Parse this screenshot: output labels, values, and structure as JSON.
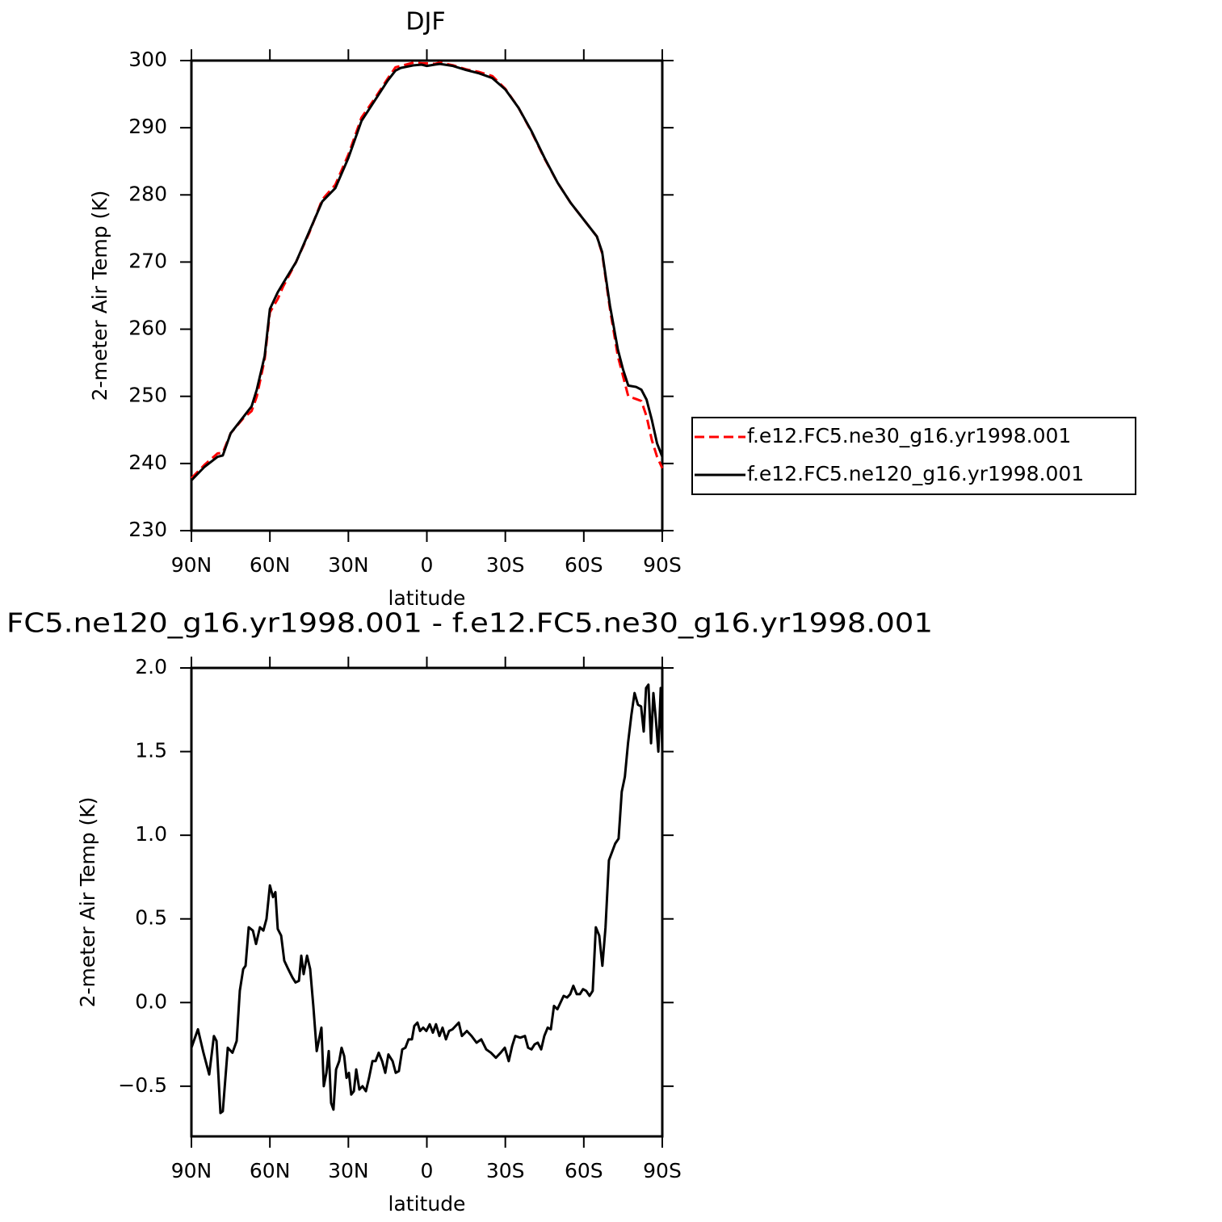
{
  "chart_data": [
    {
      "type": "line",
      "title": "DJF",
      "xlabel": "latitude",
      "ylabel": "2-meter Air Temp (K)",
      "x": [
        90,
        85,
        80,
        78,
        75,
        70,
        67,
        65,
        62,
        60,
        57,
        55,
        50,
        45,
        40,
        35,
        30,
        25,
        20,
        15,
        12,
        10,
        5,
        2,
        0,
        -3,
        -5,
        -10,
        -15,
        -20,
        -25,
        -30,
        -35,
        -40,
        -45,
        -50,
        -55,
        -60,
        -65,
        -67,
        -70,
        -73,
        -75,
        -77,
        -80,
        -82,
        -84,
        -86,
        -88,
        -90
      ],
      "series": [
        {
          "name": "f.e12.FC5.ne30_g16.yr1998.001",
          "color": "#ff0000",
          "dash": "dashed",
          "values": [
            237.8,
            239.8,
            241.5,
            241.6,
            244.5,
            246.8,
            247.8,
            250,
            255.5,
            262.5,
            264.5,
            266.3,
            270,
            274.3,
            279.3,
            281.5,
            286,
            291.5,
            294.3,
            297.3,
            299,
            299.2,
            299.7,
            299.6,
            299.6,
            299.5,
            299.7,
            299.3,
            298.7,
            298.3,
            297.7,
            295.8,
            293,
            289.4,
            285.4,
            281.8,
            278.8,
            276.3,
            273.8,
            271.3,
            263,
            256,
            253,
            250,
            249.6,
            249.3,
            247,
            243.5,
            241,
            239.3
          ]
        },
        {
          "name": "f.e12.FC5.ne120_g16.yr1998.001",
          "color": "#000000",
          "dash": "solid",
          "values": [
            237.5,
            239.5,
            241,
            241.2,
            244.5,
            247,
            248.5,
            251,
            256,
            263,
            265.5,
            266.8,
            270,
            274.5,
            279,
            281,
            285.5,
            291,
            294,
            297,
            298.5,
            298.9,
            299.3,
            299.4,
            299.2,
            299.4,
            299.5,
            299.2,
            298.6,
            298.1,
            297.4,
            295.7,
            293,
            289.5,
            285.5,
            281.8,
            278.8,
            276.3,
            273.8,
            271.5,
            263.5,
            257,
            254,
            251.6,
            251.4,
            251,
            249.5,
            246.5,
            243,
            241
          ]
        }
      ],
      "xlim": [
        90,
        -90
      ],
      "xticks": [
        {
          "value": 90,
          "label": "90N"
        },
        {
          "value": 60,
          "label": "60N"
        },
        {
          "value": 30,
          "label": "30N"
        },
        0,
        {
          "value": -30,
          "label": "30S"
        },
        {
          "value": -60,
          "label": "60S"
        },
        {
          "value": -90,
          "label": "90S"
        }
      ],
      "ylim": [
        230,
        300
      ],
      "yticks": [
        230,
        240,
        250,
        260,
        270,
        280,
        290,
        300
      ],
      "legend": "right"
    },
    {
      "type": "line",
      "title": "FC5.ne120_g16.yr1998.001 - f.e12.FC5.ne30_g16.yr1998.001",
      "xlabel": "latitude",
      "ylabel": "2-meter Air Temp (K)",
      "color": "#000000",
      "x": [
        90,
        87.5,
        85.4,
        83.2,
        81.4,
        80.4,
        78.9,
        78,
        76.1,
        74.3,
        72.7,
        71.5,
        70.2,
        69.3,
        68.1,
        66.5,
        65.3,
        63.8,
        62.5,
        61.3,
        60,
        58.8,
        57.9,
        57,
        55.7,
        54.5,
        53,
        51.4,
        50.2,
        48.9,
        48,
        47.1,
        45.8,
        44.6,
        43.4,
        42.1,
        41.2,
        40.3,
        39.4,
        38.4,
        37.5,
        36.6,
        35.7,
        34.7,
        33.5,
        32.6,
        31.6,
        30.7,
        29.8,
        28.9,
        27.9,
        27,
        25.8,
        24.6,
        23.3,
        22.1,
        20.8,
        19.6,
        18.4,
        17.1,
        15.9,
        14.7,
        13.1,
        11.9,
        10.7,
        9.4,
        8.2,
        7,
        5.7,
        4.8,
        3.6,
        2.6,
        1.4,
        0.2,
        -1.1,
        -2.3,
        -3.5,
        -4.8,
        -6,
        -7.3,
        -8.5,
        -9.8,
        -11,
        -12.2,
        -13.4,
        -15.3,
        -17.1,
        -19,
        -20.8,
        -22.7,
        -24.5,
        -26.4,
        -28.2,
        -29.8,
        -31.3,
        -32.6,
        -33.8,
        -35.7,
        -37.5,
        -38.7,
        -40,
        -41.2,
        -42.4,
        -43.7,
        -44.9,
        -46.2,
        -47.4,
        -48.6,
        -49.9,
        -51.1,
        -52.3,
        -53.6,
        -54.8,
        -56,
        -57.3,
        -58.5,
        -59.7,
        -60.9,
        -62.2,
        -63.4,
        -64.6,
        -65.9,
        -67.1,
        -68.3,
        -69.6,
        -70.8,
        -72,
        -73.3,
        -74.5,
        -75.7,
        -76.9,
        -78.2,
        -79.4,
        -80.7,
        -81.9,
        -82.9,
        -83.8,
        -84.7,
        -85.7,
        -86.6,
        -87.5,
        -88.5,
        -89.4,
        -90
      ],
      "values": [
        -0.27,
        -0.16,
        -0.3,
        -0.43,
        -0.2,
        -0.23,
        -0.66,
        -0.65,
        -0.27,
        -0.3,
        -0.23,
        0.07,
        0.2,
        0.22,
        0.45,
        0.43,
        0.35,
        0.45,
        0.43,
        0.5,
        0.7,
        0.63,
        0.66,
        0.44,
        0.4,
        0.25,
        0.2,
        0.15,
        0.12,
        0.13,
        0.28,
        0.17,
        0.28,
        0.2,
        -0.02,
        -0.29,
        -0.22,
        -0.15,
        -0.5,
        -0.42,
        -0.29,
        -0.6,
        -0.64,
        -0.4,
        -0.35,
        -0.27,
        -0.32,
        -0.45,
        -0.42,
        -0.55,
        -0.53,
        -0.4,
        -0.52,
        -0.5,
        -0.53,
        -0.45,
        -0.35,
        -0.35,
        -0.3,
        -0.35,
        -0.42,
        -0.31,
        -0.35,
        -0.42,
        -0.41,
        -0.28,
        -0.27,
        -0.22,
        -0.22,
        -0.14,
        -0.12,
        -0.17,
        -0.15,
        -0.17,
        -0.13,
        -0.18,
        -0.13,
        -0.2,
        -0.15,
        -0.22,
        -0.17,
        -0.16,
        -0.14,
        -0.12,
        -0.2,
        -0.17,
        -0.2,
        -0.24,
        -0.22,
        -0.28,
        -0.3,
        -0.33,
        -0.3,
        -0.27,
        -0.35,
        -0.26,
        -0.2,
        -0.21,
        -0.2,
        -0.27,
        -0.28,
        -0.25,
        -0.24,
        -0.28,
        -0.2,
        -0.15,
        -0.16,
        -0.02,
        -0.04,
        0,
        0.04,
        0.03,
        0.05,
        0.1,
        0.05,
        0.05,
        0.08,
        0.07,
        0.04,
        0.07,
        0.45,
        0.4,
        0.22,
        0.45,
        0.85,
        0.9,
        0.95,
        0.98,
        1.26,
        1.35,
        1.55,
        1.72,
        1.85,
        1.78,
        1.77,
        1.62,
        1.88,
        1.9,
        1.55,
        1.85,
        1.7,
        1.5,
        1.88,
        1.5
      ],
      "xlim": [
        90,
        -90
      ],
      "xticks": [
        {
          "value": 90,
          "label": "90N"
        },
        {
          "value": 60,
          "label": "60N"
        },
        {
          "value": 30,
          "label": "30N"
        },
        0,
        {
          "value": -30,
          "label": "30S"
        },
        {
          "value": -60,
          "label": "60S"
        },
        {
          "value": -90,
          "label": "90S"
        }
      ],
      "ylim": [
        -0.8,
        2.0
      ],
      "yticks": [
        {
          "value": -0.5,
          "label": "−0.5"
        },
        {
          "value": 0,
          "label": "0.0"
        },
        {
          "value": 0.5,
          "label": "0.5"
        },
        {
          "value": 1,
          "label": "1.0"
        },
        {
          "value": 1.5,
          "label": "1.5"
        },
        {
          "value": 2,
          "label": "2.0"
        }
      ]
    }
  ]
}
